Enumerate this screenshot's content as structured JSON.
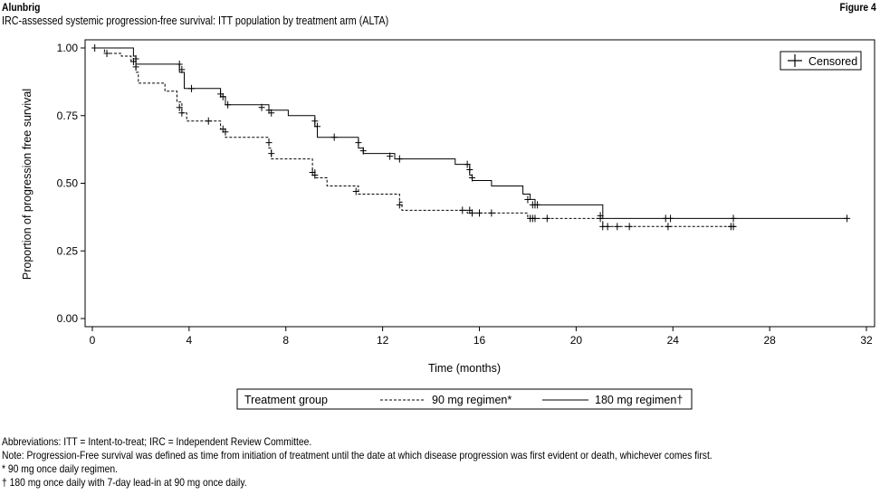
{
  "header": {
    "brand": "Alunbrig",
    "figure_label": "Figure 4",
    "subtitle": "IRC-assessed systemic progression-free survival: ITT population by treatment arm (ALTA)"
  },
  "chart_data": {
    "type": "line",
    "step": true,
    "title": "",
    "xlabel": "Time (months)",
    "ylabel": "Proportion of progression free survival",
    "xlim": [
      0,
      32
    ],
    "ylim": [
      0,
      1.0
    ],
    "x_ticks": [
      0,
      4,
      8,
      12,
      16,
      20,
      24,
      28,
      32
    ],
    "y_ticks": [
      0.0,
      0.25,
      0.5,
      0.75,
      1.0
    ],
    "x_tick_labels": [
      "0",
      "4",
      "8",
      "12",
      "16",
      "20",
      "24",
      "28",
      "32"
    ],
    "y_tick_labels": [
      "0.00",
      "0.25",
      "0.50",
      "0.75",
      "1.00"
    ],
    "grid": false,
    "censor_legend": "Censored",
    "legend_title": "Treatment group",
    "series": [
      {
        "name": "90 mg regimen*",
        "style": "dashed",
        "steps": [
          [
            0,
            1.0
          ],
          [
            0.5,
            0.98
          ],
          [
            1.2,
            0.97
          ],
          [
            1.6,
            0.95
          ],
          [
            1.8,
            0.91
          ],
          [
            1.9,
            0.87
          ],
          [
            3.0,
            0.84
          ],
          [
            3.5,
            0.8
          ],
          [
            3.7,
            0.76
          ],
          [
            3.9,
            0.73
          ],
          [
            5.3,
            0.7
          ],
          [
            5.5,
            0.67
          ],
          [
            7.3,
            0.63
          ],
          [
            7.4,
            0.59
          ],
          [
            9.1,
            0.55
          ],
          [
            9.2,
            0.52
          ],
          [
            9.7,
            0.49
          ],
          [
            11.0,
            0.46
          ],
          [
            12.7,
            0.43
          ],
          [
            12.8,
            0.4
          ],
          [
            15.5,
            0.39
          ],
          [
            18.0,
            0.37
          ],
          [
            21.1,
            0.34
          ],
          [
            26.6,
            0.34
          ]
        ],
        "censored": [
          [
            0.6,
            0.98
          ],
          [
            1.7,
            0.95
          ],
          [
            1.8,
            0.93
          ],
          [
            3.6,
            0.78
          ],
          [
            3.7,
            0.76
          ],
          [
            4.8,
            0.73
          ],
          [
            5.4,
            0.7
          ],
          [
            5.5,
            0.69
          ],
          [
            7.3,
            0.65
          ],
          [
            7.4,
            0.61
          ],
          [
            9.1,
            0.54
          ],
          [
            9.2,
            0.53
          ],
          [
            10.9,
            0.47
          ],
          [
            12.7,
            0.42
          ],
          [
            15.3,
            0.4
          ],
          [
            15.6,
            0.4
          ],
          [
            15.7,
            0.39
          ],
          [
            16.0,
            0.39
          ],
          [
            16.5,
            0.39
          ],
          [
            18.1,
            0.37
          ],
          [
            18.2,
            0.37
          ],
          [
            18.3,
            0.37
          ],
          [
            18.8,
            0.37
          ],
          [
            21.0,
            0.37
          ],
          [
            21.1,
            0.34
          ],
          [
            21.3,
            0.34
          ],
          [
            21.7,
            0.34
          ],
          [
            22.2,
            0.34
          ],
          [
            23.8,
            0.34
          ],
          [
            26.4,
            0.34
          ],
          [
            26.5,
            0.34
          ]
        ]
      },
      {
        "name": "180 mg regimen†",
        "style": "solid",
        "steps": [
          [
            0,
            1.0
          ],
          [
            1.7,
            0.97
          ],
          [
            1.8,
            0.94
          ],
          [
            3.6,
            0.91
          ],
          [
            3.8,
            0.85
          ],
          [
            5.3,
            0.82
          ],
          [
            5.5,
            0.79
          ],
          [
            7.3,
            0.77
          ],
          [
            8.1,
            0.75
          ],
          [
            9.2,
            0.71
          ],
          [
            9.3,
            0.67
          ],
          [
            11.0,
            0.63
          ],
          [
            11.2,
            0.61
          ],
          [
            12.5,
            0.59
          ],
          [
            15.0,
            0.57
          ],
          [
            15.6,
            0.53
          ],
          [
            15.7,
            0.51
          ],
          [
            16.5,
            0.49
          ],
          [
            17.8,
            0.46
          ],
          [
            18.1,
            0.44
          ],
          [
            18.3,
            0.42
          ],
          [
            21.1,
            0.37
          ],
          [
            31.2,
            0.37
          ]
        ],
        "censored": [
          [
            0.1,
            1.0
          ],
          [
            1.8,
            0.96
          ],
          [
            3.6,
            0.94
          ],
          [
            3.7,
            0.92
          ],
          [
            4.1,
            0.85
          ],
          [
            5.3,
            0.83
          ],
          [
            5.4,
            0.82
          ],
          [
            5.6,
            0.79
          ],
          [
            7.0,
            0.78
          ],
          [
            7.3,
            0.77
          ],
          [
            7.4,
            0.76
          ],
          [
            9.2,
            0.73
          ],
          [
            9.3,
            0.71
          ],
          [
            10.0,
            0.67
          ],
          [
            11.0,
            0.65
          ],
          [
            11.2,
            0.62
          ],
          [
            12.3,
            0.6
          ],
          [
            12.7,
            0.59
          ],
          [
            15.5,
            0.57
          ],
          [
            15.6,
            0.55
          ],
          [
            15.7,
            0.52
          ],
          [
            18.0,
            0.44
          ],
          [
            18.2,
            0.42
          ],
          [
            18.3,
            0.42
          ],
          [
            18.4,
            0.42
          ],
          [
            21.0,
            0.38
          ],
          [
            23.7,
            0.37
          ],
          [
            23.9,
            0.37
          ],
          [
            26.5,
            0.37
          ],
          [
            31.2,
            0.37
          ]
        ]
      }
    ]
  },
  "notes": [
    "Abbreviations: ITT = Intent-to-treat; IRC = Independent Review Committee.",
    "Note: Progression-Free survival was defined as time from initiation of treatment until the date at which disease progression was first evident or death, whichever comes first.",
    "* 90 mg once daily regimen.",
    "† 180 mg once daily with 7-day lead-in at 90 mg once daily."
  ]
}
